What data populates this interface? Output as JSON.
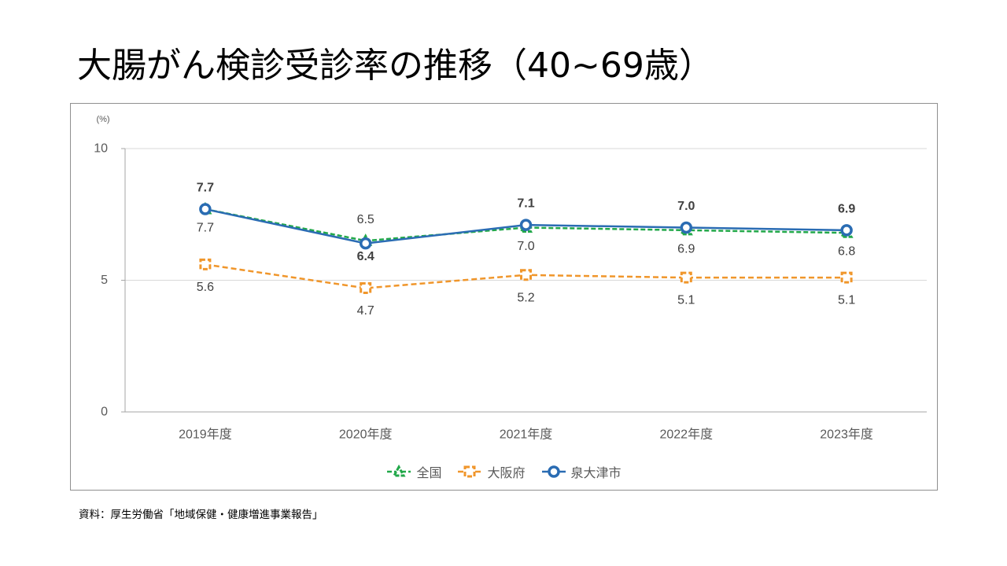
{
  "slide": {
    "source": "資料：厚生労働省「地域保健・健康増進事業報告」"
  },
  "chart_data": {
    "type": "line",
    "title": "大腸がん検診受診率の推移（40~69歳）",
    "ylabel": "(%)",
    "categories": [
      "2019年度",
      "2020年度",
      "2021年度",
      "2022年度",
      "2023年度"
    ],
    "ylim": [
      0,
      10
    ],
    "yticks": [
      0,
      5,
      10
    ],
    "grid": true,
    "legend": "bottom",
    "series": [
      {
        "name": "全国",
        "values": [
          7.7,
          6.5,
          7.0,
          6.9,
          6.8
        ],
        "color": "#22A84A",
        "line": "dashed",
        "marker": "triangle"
      },
      {
        "name": "大阪府",
        "values": [
          5.6,
          4.7,
          5.2,
          5.1,
          5.1
        ],
        "color": "#F0962B",
        "line": "dashed",
        "marker": "square"
      },
      {
        "name": "泉大津市",
        "values": [
          7.7,
          6.4,
          7.1,
          7.0,
          6.9
        ],
        "color": "#2A6CB3",
        "line": "solid",
        "marker": "circle"
      }
    ]
  }
}
